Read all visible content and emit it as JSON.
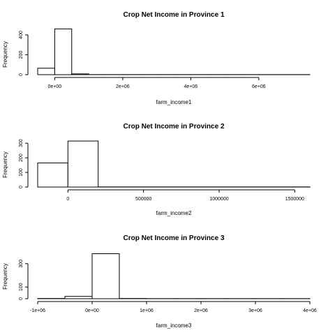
{
  "chart_data": [
    {
      "type": "bar",
      "title": "Crop Net Income in Province 1",
      "xlabel": "farm_income1",
      "ylabel": "Frequency",
      "xlim": [
        -500000,
        7500000
      ],
      "ylim": [
        0,
        470
      ],
      "x_ticks": [
        0,
        2000000,
        4000000,
        6000000
      ],
      "x_tick_labels": [
        "0e+00",
        "2e+06",
        "4e+06",
        "6e+06"
      ],
      "y_ticks": [
        0,
        200,
        400
      ],
      "y_tick_labels": [
        "0",
        "200",
        "400"
      ],
      "bins": [
        {
          "start": -500000,
          "end": 0,
          "count": 65
        },
        {
          "start": 0,
          "end": 500000,
          "count": 460
        },
        {
          "start": 500000,
          "end": 1000000,
          "count": 8
        },
        {
          "start": 1000000,
          "end": 1500000,
          "count": 1
        },
        {
          "start": 1500000,
          "end": 2000000,
          "count": 1
        },
        {
          "start": 2000000,
          "end": 2500000,
          "count": 1
        },
        {
          "start": 2500000,
          "end": 3000000,
          "count": 1
        },
        {
          "start": 3000000,
          "end": 3500000,
          "count": 1
        },
        {
          "start": 3500000,
          "end": 4000000,
          "count": 1
        },
        {
          "start": 4000000,
          "end": 4500000,
          "count": 1
        },
        {
          "start": 4500000,
          "end": 5000000,
          "count": 1
        },
        {
          "start": 5000000,
          "end": 5500000,
          "count": 1
        },
        {
          "start": 5500000,
          "end": 6000000,
          "count": 1
        },
        {
          "start": 6000000,
          "end": 6500000,
          "count": 1
        },
        {
          "start": 6500000,
          "end": 7000000,
          "count": 1
        },
        {
          "start": 7000000,
          "end": 7500000,
          "count": 1
        }
      ]
    },
    {
      "type": "bar",
      "title": "Crop Net Income in Province 2",
      "xlabel": "farm_income2",
      "ylabel": "Frequency",
      "xlim": [
        -200000,
        1600000
      ],
      "ylim": [
        0,
        320
      ],
      "x_ticks": [
        0,
        500000,
        1000000,
        1500000
      ],
      "x_tick_labels": [
        "0",
        "500000",
        "1000000",
        "1500000"
      ],
      "y_ticks": [
        0,
        100,
        200,
        300
      ],
      "y_tick_labels": [
        "0",
        "100",
        "200",
        "300"
      ],
      "bins": [
        {
          "start": -200000,
          "end": 0,
          "count": 165
        },
        {
          "start": 0,
          "end": 200000,
          "count": 315
        },
        {
          "start": 200000,
          "end": 400000,
          "count": 1
        },
        {
          "start": 400000,
          "end": 600000,
          "count": 1
        },
        {
          "start": 600000,
          "end": 800000,
          "count": 1
        },
        {
          "start": 800000,
          "end": 1000000,
          "count": 1
        },
        {
          "start": 1000000,
          "end": 1200000,
          "count": 1
        },
        {
          "start": 1200000,
          "end": 1400000,
          "count": 1
        },
        {
          "start": 1400000,
          "end": 1600000,
          "count": 1
        }
      ]
    },
    {
      "type": "bar",
      "title": "Crop Net Income in Province 3",
      "xlabel": "farm_income3",
      "ylabel": "Frequency",
      "xlim": [
        -1000000,
        4000000
      ],
      "ylim": [
        0,
        400
      ],
      "x_ticks": [
        -1000000,
        0,
        1000000,
        2000000,
        3000000,
        4000000
      ],
      "x_tick_labels": [
        "-1e+06",
        "0e+00",
        "1e+06",
        "2e+06",
        "3e+06",
        "4e+06"
      ],
      "y_ticks": [
        0,
        100,
        300
      ],
      "y_tick_labels": [
        "0",
        "100",
        "300"
      ],
      "bins": [
        {
          "start": -1000000,
          "end": -500000,
          "count": 2
        },
        {
          "start": -500000,
          "end": 0,
          "count": 20
        },
        {
          "start": 0,
          "end": 500000,
          "count": 385
        },
        {
          "start": 500000,
          "end": 1000000,
          "count": 2
        },
        {
          "start": 1000000,
          "end": 1500000,
          "count": 1
        },
        {
          "start": 1500000,
          "end": 2000000,
          "count": 1
        },
        {
          "start": 2000000,
          "end": 2500000,
          "count": 1
        },
        {
          "start": 2500000,
          "end": 3000000,
          "count": 1
        },
        {
          "start": 3000000,
          "end": 3500000,
          "count": 1
        },
        {
          "start": 3500000,
          "end": 4000000,
          "count": 1
        }
      ]
    }
  ]
}
